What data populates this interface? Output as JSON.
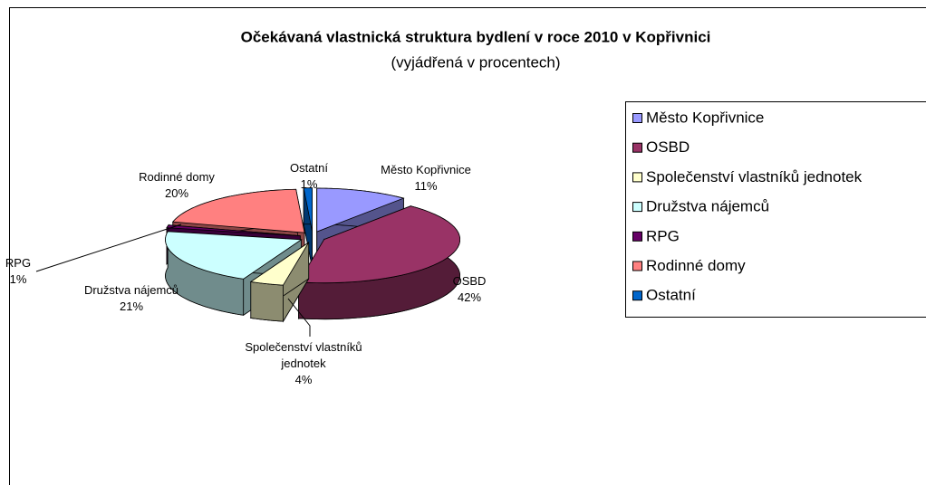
{
  "chart_data": {
    "type": "pie3d",
    "title": "Očekávaná vlastnická struktura bydlení v roce 2010 v Kopřivnici",
    "subtitle": "(vyjádřená v procentech)",
    "categories": [
      "Město Kopřivnice",
      "OSBD",
      "Společenství vlastníků jednotek",
      "Družstva nájemců",
      "RPG",
      "Rodinné domy",
      "Ostatní"
    ],
    "values": [
      11,
      42,
      4,
      21,
      1,
      20,
      1
    ],
    "value_labels": [
      "11%",
      "42%",
      "4%",
      "21%",
      "1%",
      "20%",
      "1%"
    ],
    "colors": [
      "#9999ff",
      "#993366",
      "#ffffcc",
      "#ccffff",
      "#660066",
      "#ff8080",
      "#0066cc"
    ],
    "legend": "right"
  }
}
